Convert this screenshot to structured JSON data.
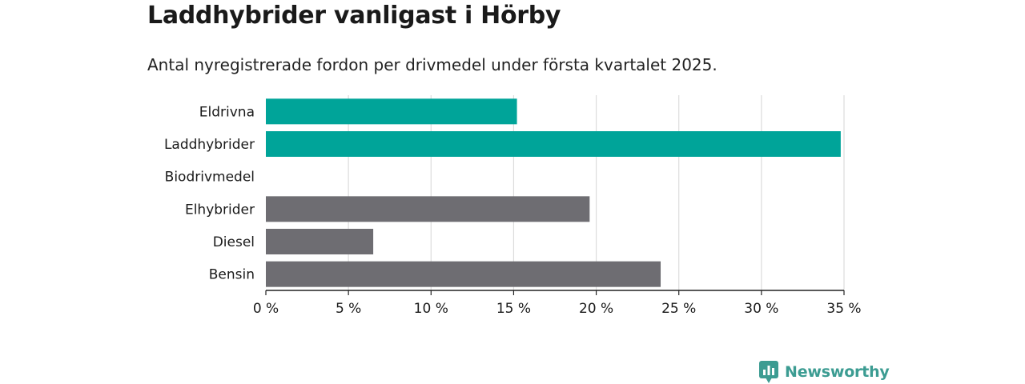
{
  "header": {
    "title": "Laddhybrider vanligast i Hörby",
    "subtitle": "Antal nyregistrerade fordon per drivmedel under första kvartalet 2025."
  },
  "chart_data": {
    "type": "bar",
    "orientation": "horizontal",
    "categories": [
      "Eldrivna",
      "Laddhybrider",
      "Biodrivmedel",
      "Elhybrider",
      "Diesel",
      "Bensin"
    ],
    "values": [
      15.2,
      34.8,
      0,
      19.6,
      6.5,
      23.9
    ],
    "bar_colors": [
      "#00a499",
      "#00a499",
      "#00a499",
      "#6e6d72",
      "#6e6d72",
      "#6e6d72"
    ],
    "xlim": [
      0,
      35
    ],
    "x_ticks": [
      0,
      5,
      10,
      15,
      20,
      25,
      30,
      35
    ],
    "x_tick_labels": [
      "0 %",
      "5 %",
      "10 %",
      "15 %",
      "20 %",
      "25 %",
      "30 %",
      "35 %"
    ],
    "grid": true
  },
  "brand": {
    "name": "Newsworthy",
    "color": "#3c9c92"
  }
}
